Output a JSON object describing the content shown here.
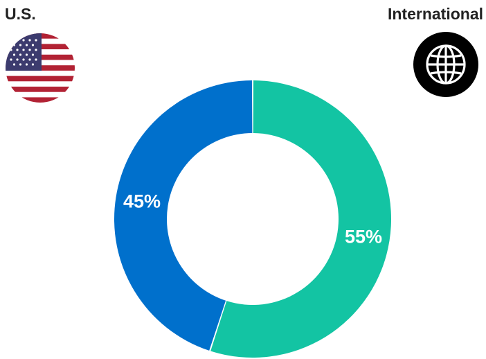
{
  "labels": {
    "us": "U.S.",
    "international": "International"
  },
  "icons": {
    "us": "us-flag-icon",
    "international": "globe-icon"
  },
  "chart_data": {
    "type": "pie",
    "donut": true,
    "categories": [
      "International",
      "U.S."
    ],
    "values": [
      55,
      45
    ],
    "value_labels": [
      "55%",
      "45%"
    ],
    "colors": [
      "#13c4a3",
      "#0070cc"
    ],
    "start": "12 o'clock",
    "direction": "clockwise"
  }
}
